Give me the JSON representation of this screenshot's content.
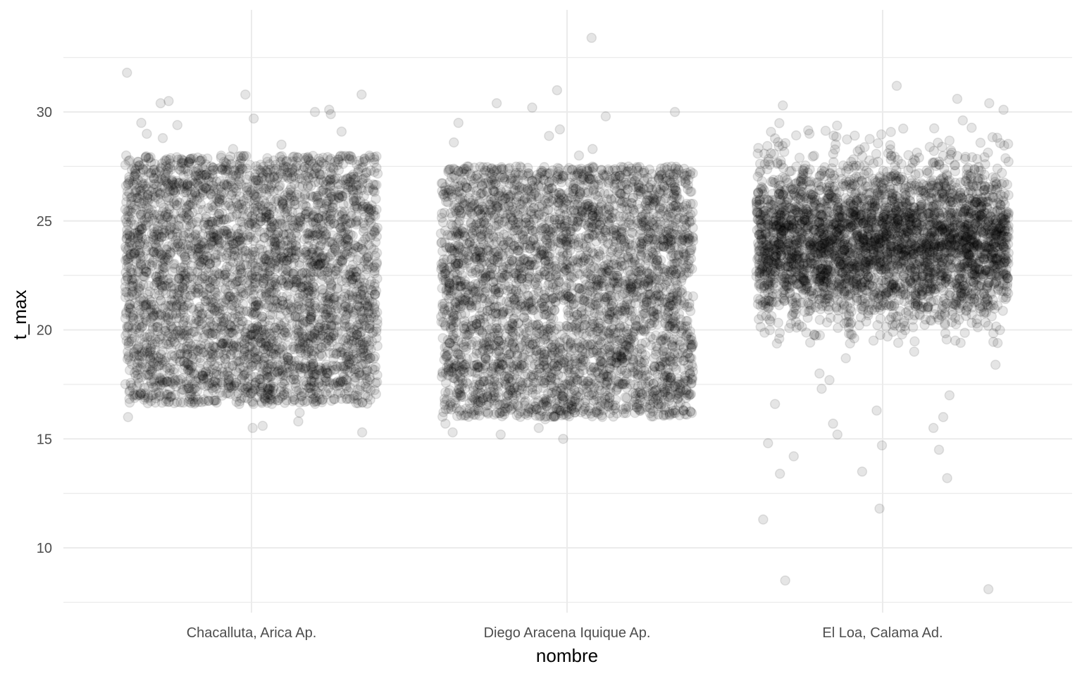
{
  "chart_data": {
    "type": "scatter",
    "subtype": "jitter",
    "xlabel": "nombre",
    "ylabel": "t_max",
    "categories": [
      "Chacalluta, Arica Ap.",
      "Diego Aracena Iquique Ap.",
      "El Loa, Calama Ad."
    ],
    "ylim": [
      7.0,
      34.0
    ],
    "yticks": [
      10,
      15,
      20,
      25,
      30
    ],
    "yticks_minor": [
      7.5,
      12.5,
      17.5,
      22.5,
      27.5,
      32.5
    ],
    "grid": true,
    "legend": "none",
    "point_color": "#000000",
    "point_alpha": 0.1,
    "jitter_width": 0.4,
    "series": [
      {
        "category": "Chacalluta, Arica Ap.",
        "n": 3650,
        "mode": "uniform",
        "range": [
          16.6,
          28.0
        ],
        "outliers_high": [
          28.3,
          28.5,
          28.8,
          29.0,
          29.1,
          29.4,
          29.5,
          29.7,
          29.9,
          30.0,
          30.1,
          30.4,
          30.5,
          30.8,
          30.8,
          31.8
        ],
        "outliers_low": [
          16.2,
          16.0,
          15.8,
          15.6,
          15.5,
          15.3
        ]
      },
      {
        "category": "Diego Aracena Iquique Ap.",
        "n": 3650,
        "mode": "uniform",
        "range": [
          16.0,
          27.5
        ],
        "outliers_high": [
          28.0,
          28.3,
          28.6,
          28.9,
          29.2,
          29.5,
          29.8,
          30.0,
          30.2,
          30.4,
          31.0,
          33.4
        ],
        "outliers_low": [
          15.9,
          15.7,
          15.5,
          15.3,
          15.2,
          15.0
        ]
      },
      {
        "category": "El Loa, Calama Ad.",
        "n": 3650,
        "mode": "normal",
        "mean": 24.0,
        "sd": 1.9,
        "clip": [
          19.3,
          29.8
        ],
        "outliers_high": [
          30.1,
          30.3,
          30.4,
          30.6,
          31.2
        ],
        "outliers_low": [
          19.0,
          18.7,
          18.4,
          18.0,
          17.7,
          17.3,
          17.0,
          16.6,
          16.3,
          16.0,
          15.7,
          15.5,
          15.2,
          14.8,
          14.7,
          14.5,
          14.2,
          13.5,
          13.4,
          13.2,
          11.8,
          11.3,
          8.5,
          8.1
        ]
      }
    ]
  }
}
